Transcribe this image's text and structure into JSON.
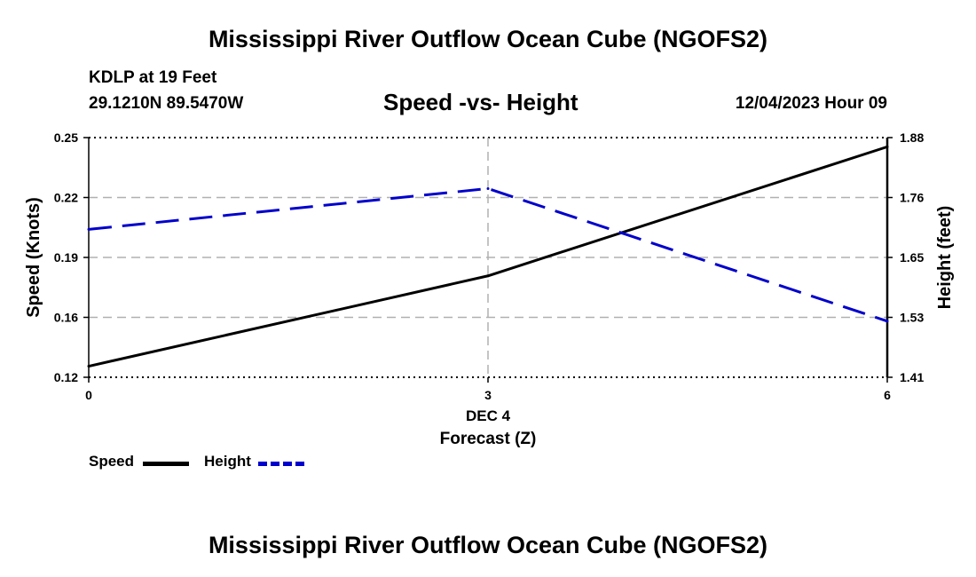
{
  "header": {
    "title": "Mississippi River Outflow Ocean Cube (NGOFS2)",
    "station": "KDLP at 19 Feet",
    "coords": "29.1210N  89.5470W",
    "subtitle": "Speed -vs- Height",
    "datetime": "12/04/2023 Hour 09"
  },
  "footer": {
    "title": "Mississippi River Outflow Ocean Cube (NGOFS2)"
  },
  "legend": {
    "speed_label": "Speed",
    "height_label": "Height"
  },
  "colors": {
    "speed": "#000000",
    "height": "#0000cc",
    "grid": "#b0b0b0"
  },
  "chart_data": {
    "type": "line",
    "title": "Speed -vs- Height",
    "xlabel": "Forecast (Z)",
    "xlabel_date": "DEC 4",
    "xlim": [
      0,
      6
    ],
    "xticks": [
      0,
      3,
      6
    ],
    "xtick_labels": [
      "0",
      "3",
      "6"
    ],
    "x": [
      0,
      3,
      6
    ],
    "y_left": {
      "label": "Speed (Knots)",
      "lim": [
        0.12,
        0.25
      ],
      "tick_labels": [
        "0.25",
        "0.22",
        "0.19",
        "0.16",
        "0.12"
      ]
    },
    "y_right": {
      "label": "Height (feet)",
      "lim": [
        1.41,
        1.88
      ],
      "tick_labels": [
        "1.88",
        "1.76",
        "1.65",
        "1.53",
        "1.41"
      ]
    },
    "grid": true,
    "series": [
      {
        "name": "Speed",
        "axis": "left",
        "style": "solid",
        "values": [
          0.126,
          0.175,
          0.245
        ]
      },
      {
        "name": "Height",
        "axis": "right",
        "style": "dashed",
        "values": [
          1.7,
          1.78,
          1.52
        ]
      }
    ]
  }
}
